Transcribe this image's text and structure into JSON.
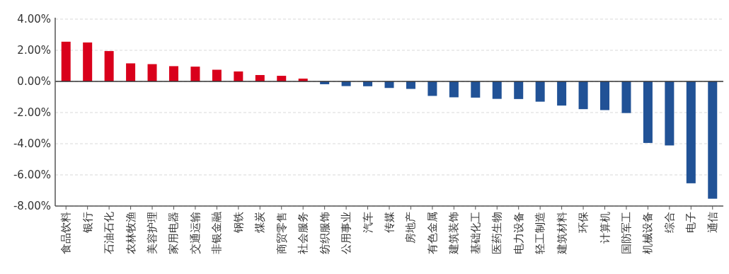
{
  "chart_data": {
    "type": "bar",
    "categories": [
      "食品饮料",
      "银行",
      "石油石化",
      "农林牧渔",
      "美容护理",
      "家用电器",
      "交通运输",
      "非银金融",
      "钢铁",
      "煤炭",
      "商贸零售",
      "社会服务",
      "纺织服饰",
      "公用事业",
      "汽车",
      "传媒",
      "房地产",
      "有色金属",
      "建筑装饰",
      "基础化工",
      "医药生物",
      "电力设备",
      "轻工制造",
      "建筑材料",
      "环保",
      "计算机",
      "国防军工",
      "机械设备",
      "综合",
      "电子",
      "通信"
    ],
    "values": [
      2.55,
      2.5,
      1.95,
      1.16,
      1.11,
      0.98,
      0.95,
      0.75,
      0.64,
      0.41,
      0.36,
      0.18,
      -0.18,
      -0.3,
      -0.31,
      -0.42,
      -0.48,
      -0.93,
      -1.02,
      -1.04,
      -1.12,
      -1.13,
      -1.3,
      -1.55,
      -1.78,
      -1.84,
      -2.03,
      -3.95,
      -4.11,
      -6.54,
      -7.53
    ],
    "colors": [
      "#d9001b",
      "#d9001b",
      "#d9001b",
      "#d9001b",
      "#d9001b",
      "#d9001b",
      "#d9001b",
      "#d9001b",
      "#d9001b",
      "#d9001b",
      "#d9001b",
      "#d9001b",
      "#215296",
      "#215296",
      "#215296",
      "#215296",
      "#215296",
      "#215296",
      "#215296",
      "#215296",
      "#215296",
      "#215296",
      "#215296",
      "#215296",
      "#215296",
      "#215296",
      "#215296",
      "#215296",
      "#215296",
      "#215296",
      "#215296"
    ],
    "ylim": [
      -8,
      4
    ],
    "yticks": [
      {
        "value": 4,
        "label": "4.00%"
      },
      {
        "value": 2,
        "label": "2.00%"
      },
      {
        "value": 0,
        "label": "0.00%"
      },
      {
        "value": -2,
        "label": "-2.00%"
      },
      {
        "value": -4,
        "label": "-4.00%"
      },
      {
        "value": -6,
        "label": "-6.00%"
      },
      {
        "value": -8,
        "label": "-8.00%"
      }
    ],
    "grid": "y"
  }
}
